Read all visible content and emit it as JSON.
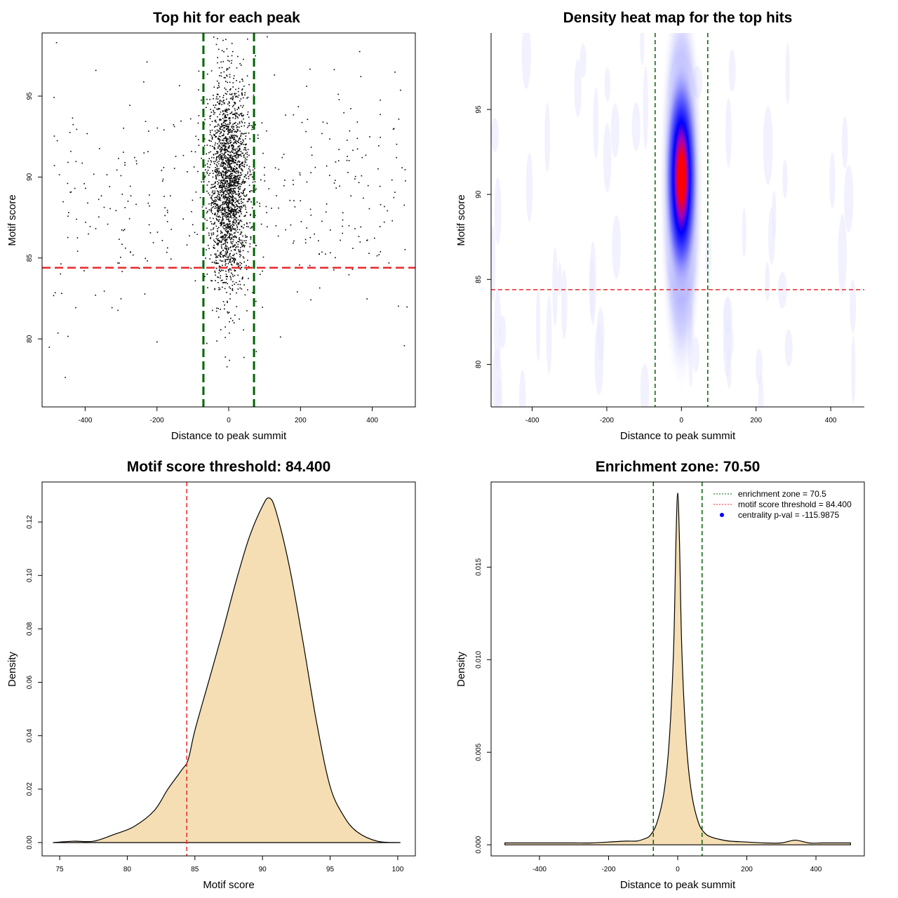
{
  "figure": {
    "background": "#ffffff"
  },
  "colors": {
    "points": "#000000",
    "threshold_line": "#e8282b",
    "zone_line": "#006400",
    "fill": "#f5deb3",
    "heat_low": "#ffffff",
    "heat_mid": "#0000ff",
    "heat_high": "#ff0000",
    "centrality_marker": "#0000ff"
  },
  "chart_data": [
    {
      "id": "scatter",
      "type": "scatter",
      "title": "Top hit for each peak",
      "xlabel": "Distance to peak summit",
      "ylabel": "Motif score",
      "xlim": [
        -520,
        520
      ],
      "ylim": [
        75.8,
        98.9
      ],
      "xticks": [
        -400,
        -200,
        0,
        200,
        400
      ],
      "yticks": [
        80,
        85,
        90,
        95
      ],
      "vlines": [
        -70.5,
        70.5
      ],
      "hline": 84.4,
      "series": [
        {
          "dense_center": {
            "x_sd": 28,
            "y_mean": 89.5,
            "y_sd": 3.2,
            "count": 2200
          },
          "sparse_background": {
            "x_range": [
              -500,
              500
            ],
            "y_mean": 88.5,
            "y_sd": 3.6,
            "count": 380
          }
        }
      ]
    },
    {
      "id": "heatmap",
      "type": "heatmap",
      "title": "Density heat map for the top hits",
      "xlabel": "Distance to peak summit",
      "ylabel": "Motif score",
      "xlim": [
        -510,
        490
      ],
      "ylim": [
        77.5,
        99.5
      ],
      "xticks": [
        -400,
        -200,
        0,
        200,
        400
      ],
      "yticks": [
        80,
        85,
        90,
        95
      ],
      "vlines": [
        -70.5,
        70.5
      ],
      "hline": 84.4,
      "peak": {
        "x": 0,
        "y": 90.5
      }
    },
    {
      "id": "score_density",
      "type": "area",
      "title": "Motif score threshold: 84.400",
      "xlabel": "Motif score",
      "ylabel": "Density",
      "xlim": [
        73.7,
        101.3
      ],
      "ylim": [
        -0.005,
        0.135
      ],
      "xticks": [
        75,
        80,
        85,
        90,
        95,
        100
      ],
      "yticks": [
        0.0,
        0.02,
        0.04,
        0.06,
        0.08,
        0.1,
        0.12
      ],
      "ytick_labels": [
        "0.00",
        "0.02",
        "0.04",
        "0.06",
        "0.08",
        "0.10",
        "0.12"
      ],
      "vline": 84.4,
      "x": [
        74.5,
        76.0,
        77.5,
        79.0,
        80.5,
        82.0,
        83.0,
        84.0,
        84.5,
        85.0,
        86.0,
        87.0,
        88.0,
        89.0,
        90.0,
        90.5,
        91.0,
        92.0,
        93.0,
        94.0,
        95.0,
        96.0,
        97.0,
        98.5,
        100.2
      ],
      "y": [
        0.0,
        0.0005,
        0.0005,
        0.003,
        0.006,
        0.012,
        0.02,
        0.027,
        0.031,
        0.042,
        0.06,
        0.078,
        0.097,
        0.114,
        0.126,
        0.129,
        0.124,
        0.103,
        0.075,
        0.045,
        0.021,
        0.01,
        0.004,
        0.0005,
        0.0
      ]
    },
    {
      "id": "distance_density",
      "type": "area",
      "title": "Enrichment zone: 70.50",
      "xlabel": "Distance to peak summit",
      "ylabel": "Density",
      "xlim": [
        -540,
        540
      ],
      "ylim": [
        -0.0006,
        0.0196
      ],
      "xticks": [
        -400,
        -200,
        0,
        200,
        400
      ],
      "yticks": [
        0.0,
        0.005,
        0.01,
        0.015
      ],
      "ytick_labels": [
        "0.000",
        "0.005",
        "0.010",
        "0.015"
      ],
      "vlines": [
        -70.5,
        70.5
      ],
      "x": [
        -500,
        -450,
        -400,
        -350,
        -300,
        -250,
        -200,
        -150,
        -120,
        -100,
        -80,
        -60,
        -40,
        -25,
        -12,
        -5,
        0,
        5,
        12,
        25,
        40,
        60,
        80,
        100,
        120,
        150,
        200,
        250,
        300,
        340,
        380,
        420,
        460,
        500
      ],
      "y": [
        0.0001,
        0.0001,
        0.0001,
        0.0001,
        0.0001,
        0.0001,
        0.00015,
        0.0002,
        0.0002,
        0.0003,
        0.0005,
        0.0012,
        0.0028,
        0.0055,
        0.0105,
        0.0165,
        0.019,
        0.0165,
        0.0105,
        0.0055,
        0.0028,
        0.0012,
        0.0006,
        0.0004,
        0.0003,
        0.0002,
        0.00015,
        0.0001,
        0.0001,
        0.00025,
        0.0001,
        0.0001,
        0.0001,
        0.0001
      ],
      "legend": {
        "position": "top-right",
        "entries": [
          {
            "label": "enrichment zone = 70.5",
            "style": "dotted",
            "color": "#006400"
          },
          {
            "label": "motif score threshold = 84.400",
            "style": "dotted",
            "color": "#e8282b"
          },
          {
            "label": "centrality p-val = -115.9875",
            "style": "point",
            "color": "#0000ff"
          }
        ]
      }
    }
  ]
}
